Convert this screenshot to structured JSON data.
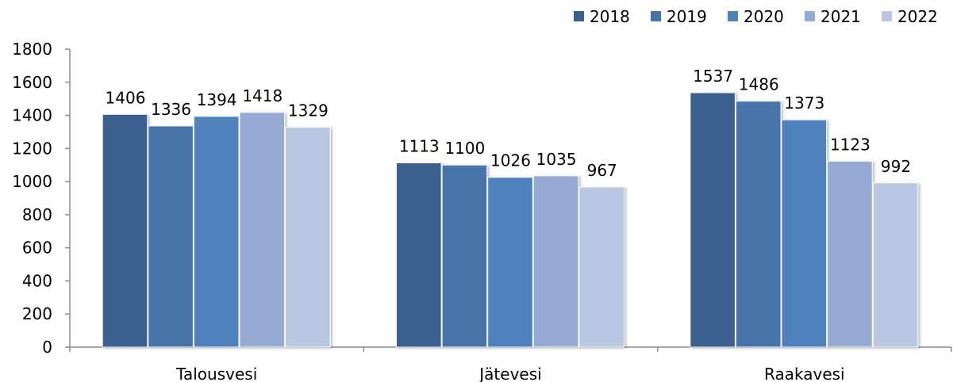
{
  "chart_data": {
    "type": "bar",
    "categories": [
      "Talousvesi",
      "Jätevesi",
      "Raakavesi"
    ],
    "series": [
      {
        "name": "2018",
        "values": [
          1406,
          1113,
          1537
        ],
        "color": "#3a5f8f"
      },
      {
        "name": "2019",
        "values": [
          1336,
          1100,
          1486
        ],
        "color": "#4674aa"
      },
      {
        "name": "2020",
        "values": [
          1394,
          1026,
          1373
        ],
        "color": "#4f81bd"
      },
      {
        "name": "2021",
        "values": [
          1418,
          1035,
          1123
        ],
        "color": "#95abd3"
      },
      {
        "name": "2022",
        "values": [
          1329,
          967,
          992
        ],
        "color": "#bac7e2"
      }
    ],
    "yticks": [
      "0",
      "200",
      "400",
      "600",
      "800",
      "1000",
      "1200",
      "1400",
      "1600",
      "1800"
    ],
    "ylim": [
      0,
      1800
    ],
    "grid": false,
    "legend_position": "top-right",
    "title": "",
    "xlabel": "",
    "ylabel": ""
  }
}
